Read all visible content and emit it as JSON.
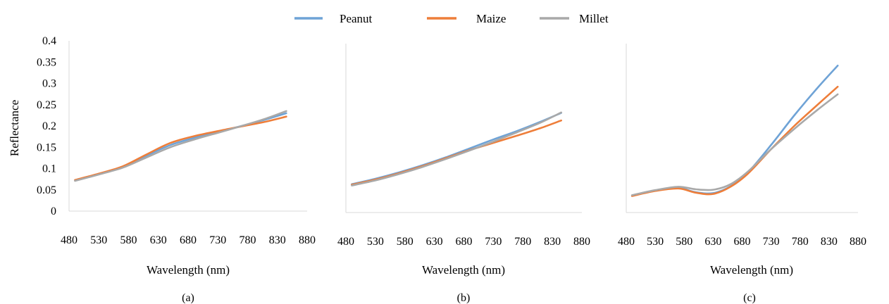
{
  "legend": [
    {
      "name": "Peanut",
      "color": "#6fa3d6"
    },
    {
      "name": "Maize",
      "color": "#ee7e3a"
    },
    {
      "name": "Millet",
      "color": "#a9a9a9"
    }
  ],
  "y_axis_label": "Reflectance",
  "chart_data": [
    {
      "type": "line",
      "panel_label": "(a)",
      "xlabel": "Wavelength (nm)",
      "ylabel": "Reflectance",
      "xlim": [
        480,
        880
      ],
      "ylim": [
        0,
        0.4
      ],
      "x_ticks": [
        "480",
        "530",
        "580",
        "630",
        "680",
        "730",
        "780",
        "830",
        "880"
      ],
      "y_ticks": [
        "0",
        "0.05",
        "0.1",
        "0.15",
        "0.2",
        "0.25",
        "0.3",
        "0.35",
        "0.4"
      ],
      "x": [
        490,
        530,
        570,
        610,
        650,
        690,
        730,
        770,
        810,
        845
      ],
      "series": [
        {
          "name": "Peanut",
          "values": [
            0.072,
            0.087,
            0.103,
            0.13,
            0.155,
            0.172,
            0.186,
            0.2,
            0.215,
            0.23
          ]
        },
        {
          "name": "Maize",
          "values": [
            0.073,
            0.088,
            0.105,
            0.133,
            0.16,
            0.176,
            0.188,
            0.199,
            0.21,
            0.222
          ]
        },
        {
          "name": "Millet",
          "values": [
            0.071,
            0.086,
            0.102,
            0.126,
            0.15,
            0.168,
            0.184,
            0.2,
            0.217,
            0.235
          ]
        }
      ]
    },
    {
      "type": "line",
      "panel_label": "(b)",
      "xlabel": "Wavelength (nm)",
      "xlim": [
        480,
        880
      ],
      "ylim": [
        0,
        0.4
      ],
      "x_ticks": [
        "480",
        "530",
        "580",
        "630",
        "680",
        "730",
        "780",
        "830",
        "880"
      ],
      "x": [
        490,
        530,
        570,
        610,
        650,
        690,
        730,
        770,
        810,
        845
      ],
      "series": [
        {
          "name": "Peanut",
          "values": [
            0.067,
            0.08,
            0.095,
            0.112,
            0.131,
            0.152,
            0.173,
            0.193,
            0.215,
            0.236
          ]
        },
        {
          "name": "Maize",
          "values": [
            0.066,
            0.078,
            0.093,
            0.11,
            0.129,
            0.148,
            0.165,
            0.182,
            0.2,
            0.218
          ]
        },
        {
          "name": "Millet",
          "values": [
            0.064,
            0.076,
            0.091,
            0.108,
            0.127,
            0.147,
            0.168,
            0.19,
            0.213,
            0.237
          ]
        }
      ]
    },
    {
      "type": "line",
      "panel_label": "(c)",
      "xlabel": "Wavelength (nm)",
      "xlim": [
        480,
        880
      ],
      "ylim": [
        0,
        0.4
      ],
      "x_ticks": [
        "480",
        "530",
        "580",
        "630",
        "680",
        "730",
        "780",
        "830",
        "880"
      ],
      "x": [
        490,
        530,
        570,
        600,
        630,
        660,
        690,
        730,
        770,
        810,
        845
      ],
      "series": [
        {
          "name": "Peanut",
          "values": [
            0.04,
            0.052,
            0.058,
            0.048,
            0.046,
            0.062,
            0.095,
            0.16,
            0.23,
            0.295,
            0.348
          ]
        },
        {
          "name": "Maize",
          "values": [
            0.039,
            0.051,
            0.057,
            0.047,
            0.044,
            0.061,
            0.092,
            0.15,
            0.205,
            0.255,
            0.298
          ]
        },
        {
          "name": "Millet",
          "values": [
            0.041,
            0.053,
            0.061,
            0.055,
            0.054,
            0.067,
            0.097,
            0.15,
            0.198,
            0.243,
            0.28
          ]
        }
      ]
    }
  ]
}
